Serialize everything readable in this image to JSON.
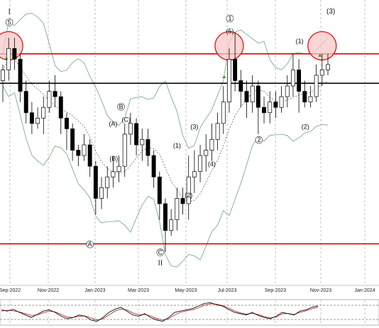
{
  "chart_data": {
    "type": "candlestick",
    "x_ticks": [
      "Sep-2022",
      "Nov-2022",
      "Jan-2023",
      "Mar-2023",
      "May-2023",
      "Jul-2023",
      "Sep-2023",
      "Nov-2023",
      "Jan-2024"
    ],
    "corner_label": "(3)",
    "horizontal_levels": [
      {
        "name": "resistance-top",
        "color": "#e00000",
        "level": 0.83
      },
      {
        "name": "pivot",
        "color": "#000000",
        "level": 0.775
      },
      {
        "name": "support",
        "color": "#e00000",
        "level": 0.475
      }
    ],
    "wave_labels": [
      "I",
      "5",
      "1",
      "(5)",
      "(1)",
      "(A)",
      "B",
      "(B)",
      "(C)",
      "(3)",
      "(1)",
      "(4)",
      "(2)",
      "2",
      "(2)",
      "A",
      "C",
      "II",
      "(3)"
    ],
    "candles": [
      [
        0.78,
        0.8,
        0.74,
        0.81
      ],
      [
        0.8,
        0.84,
        0.78,
        0.86
      ],
      [
        0.84,
        0.82,
        0.8,
        0.86
      ],
      [
        0.82,
        0.76,
        0.74,
        0.83
      ],
      [
        0.76,
        0.72,
        0.7,
        0.78
      ],
      [
        0.72,
        0.7,
        0.68,
        0.74
      ],
      [
        0.7,
        0.71,
        0.69,
        0.73
      ],
      [
        0.71,
        0.73,
        0.68,
        0.75
      ],
      [
        0.73,
        0.76,
        0.72,
        0.78
      ],
      [
        0.76,
        0.75,
        0.73,
        0.79
      ],
      [
        0.75,
        0.71,
        0.68,
        0.76
      ],
      [
        0.71,
        0.69,
        0.65,
        0.72
      ],
      [
        0.69,
        0.65,
        0.63,
        0.7
      ],
      [
        0.65,
        0.64,
        0.62,
        0.66
      ],
      [
        0.64,
        0.66,
        0.63,
        0.68
      ],
      [
        0.66,
        0.62,
        0.6,
        0.67
      ],
      [
        0.62,
        0.56,
        0.53,
        0.63
      ],
      [
        0.56,
        0.58,
        0.54,
        0.6
      ],
      [
        0.58,
        0.6,
        0.56,
        0.62
      ],
      [
        0.6,
        0.61,
        0.58,
        0.64
      ],
      [
        0.61,
        0.62,
        0.59,
        0.64
      ],
      [
        0.62,
        0.68,
        0.6,
        0.7
      ],
      [
        0.68,
        0.7,
        0.66,
        0.72
      ],
      [
        0.7,
        0.66,
        0.64,
        0.71
      ],
      [
        0.66,
        0.67,
        0.63,
        0.69
      ],
      [
        0.67,
        0.64,
        0.62,
        0.69
      ],
      [
        0.64,
        0.6,
        0.58,
        0.65
      ],
      [
        0.6,
        0.55,
        0.52,
        0.61
      ],
      [
        0.55,
        0.5,
        0.46,
        0.56
      ],
      [
        0.5,
        0.52,
        0.49,
        0.54
      ],
      [
        0.52,
        0.56,
        0.5,
        0.58
      ],
      [
        0.56,
        0.55,
        0.53,
        0.58
      ],
      [
        0.55,
        0.6,
        0.52,
        0.64
      ],
      [
        0.6,
        0.61,
        0.57,
        0.65
      ],
      [
        0.61,
        0.64,
        0.59,
        0.66
      ],
      [
        0.64,
        0.65,
        0.61,
        0.68
      ],
      [
        0.65,
        0.67,
        0.63,
        0.7
      ],
      [
        0.67,
        0.7,
        0.65,
        0.72
      ],
      [
        0.7,
        0.74,
        0.68,
        0.77
      ],
      [
        0.74,
        0.82,
        0.72,
        0.84
      ],
      [
        0.82,
        0.78,
        0.76,
        0.87
      ],
      [
        0.78,
        0.76,
        0.73,
        0.8
      ],
      [
        0.76,
        0.74,
        0.71,
        0.78
      ],
      [
        0.74,
        0.77,
        0.72,
        0.79
      ],
      [
        0.77,
        0.73,
        0.68,
        0.78
      ],
      [
        0.73,
        0.72,
        0.7,
        0.75
      ],
      [
        0.72,
        0.74,
        0.7,
        0.76
      ],
      [
        0.74,
        0.73,
        0.71,
        0.76
      ],
      [
        0.73,
        0.75,
        0.72,
        0.77
      ],
      [
        0.75,
        0.77,
        0.73,
        0.79
      ],
      [
        0.77,
        0.8,
        0.75,
        0.83
      ],
      [
        0.8,
        0.76,
        0.72,
        0.82
      ],
      [
        0.76,
        0.74,
        0.73,
        0.78
      ],
      [
        0.74,
        0.75,
        0.73,
        0.77
      ],
      [
        0.75,
        0.79,
        0.74,
        0.81
      ],
      [
        0.79,
        0.8,
        0.77,
        0.83
      ],
      [
        0.8,
        0.81,
        0.79,
        0.83
      ]
    ],
    "oscillator": {
      "line1": [
        0.6,
        0.55,
        0.62,
        0.5,
        0.4,
        0.3,
        0.42,
        0.55,
        0.6,
        0.5,
        0.35,
        0.25,
        0.3,
        0.4,
        0.35,
        0.2,
        0.15,
        0.3,
        0.5,
        0.62,
        0.7,
        0.55,
        0.4,
        0.35,
        0.45,
        0.3,
        0.2,
        0.15,
        0.3,
        0.5,
        0.55,
        0.6,
        0.65,
        0.75,
        0.85,
        0.88,
        0.8,
        0.75,
        0.62,
        0.5,
        0.45,
        0.4,
        0.5,
        0.38,
        0.3,
        0.25,
        0.35,
        0.5,
        0.45,
        0.4,
        0.55,
        0.6,
        0.7,
        0.75
      ],
      "line2": [
        0.55,
        0.58,
        0.56,
        0.52,
        0.45,
        0.38,
        0.4,
        0.48,
        0.55,
        0.52,
        0.42,
        0.32,
        0.3,
        0.35,
        0.36,
        0.28,
        0.2,
        0.25,
        0.4,
        0.55,
        0.63,
        0.6,
        0.48,
        0.4,
        0.42,
        0.36,
        0.26,
        0.2,
        0.25,
        0.4,
        0.5,
        0.56,
        0.6,
        0.68,
        0.78,
        0.84,
        0.82,
        0.77,
        0.68,
        0.56,
        0.48,
        0.43,
        0.46,
        0.42,
        0.34,
        0.28,
        0.32,
        0.44,
        0.46,
        0.42,
        0.5,
        0.56,
        0.64,
        0.7
      ]
    }
  },
  "colors": {
    "up_candle": "#ffffff",
    "down_candle": "#000000",
    "bollinger": "#6aa77a",
    "ma_dotted": "#555555",
    "highlight_circle_fill": "#f8c8c8",
    "highlight_circle_stroke": "#e00000",
    "osc_line1": "#111111",
    "osc_line2": "#b83232",
    "arrow_green": "#1a9e2a"
  }
}
